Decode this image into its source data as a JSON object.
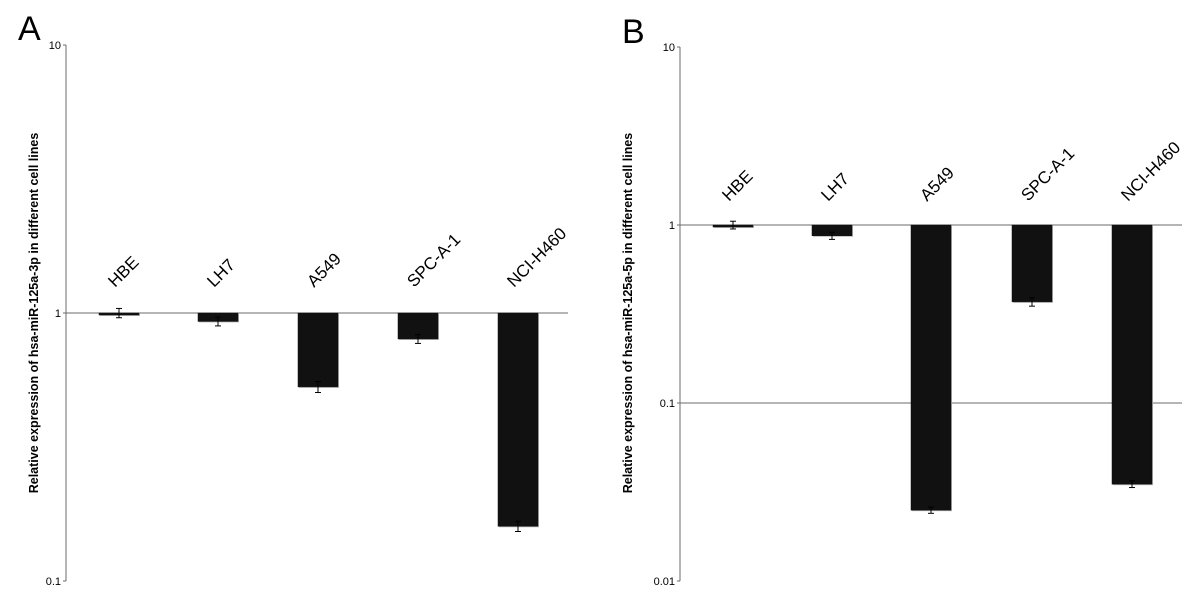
{
  "chart_data": [
    {
      "panel": "A",
      "type": "bar",
      "yscale": "log",
      "ylim": [
        0.1,
        10
      ],
      "yticks": [
        "10",
        "1",
        "0.1"
      ],
      "ylabel": "Relative expression of hsa-miR-125a-3p in different cell lines",
      "xlabel": "",
      "categories": [
        "HBE",
        "LH7",
        "A549",
        "SPC-A-1",
        "NCI-H460"
      ],
      "values": [
        1.0,
        0.93,
        0.53,
        0.8,
        0.16
      ],
      "errors": [
        0.04,
        0.035,
        0.025,
        0.03,
        0.007
      ],
      "grid": "baseline at 1",
      "bar_color": "#111111"
    },
    {
      "panel": "B",
      "type": "bar",
      "yscale": "log",
      "ylim": [
        0.01,
        10
      ],
      "yticks": [
        "10",
        "1",
        "0.1",
        "0.01"
      ],
      "ylabel": "Relative expression of hsa-miR-125a-5p in different cell lines",
      "xlabel": "",
      "categories": [
        "HBE",
        "LH7",
        "A549",
        "SPC-A-1",
        "NCI-H460"
      ],
      "values": [
        1.0,
        0.87,
        0.025,
        0.37,
        0.035
      ],
      "errors": [
        0.05,
        0.04,
        0.001,
        0.02,
        0.0015
      ],
      "grid": "lines at 1 and 0.1",
      "bar_color": "#111111"
    }
  ]
}
